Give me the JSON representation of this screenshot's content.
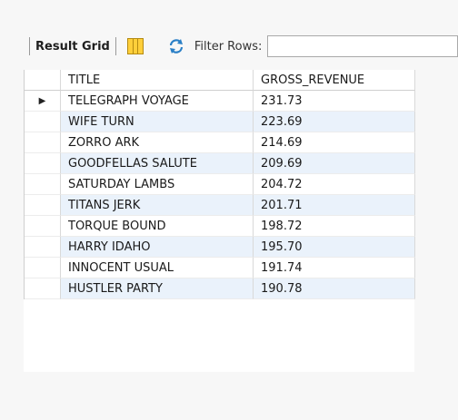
{
  "toolbar": {
    "result_grid_label": "Result Grid",
    "filter_label": "Filter Rows:",
    "filter_value": ""
  },
  "columns": [
    "TITLE",
    "GROSS_REVENUE"
  ],
  "rows": [
    {
      "title": "TELEGRAPH VOYAGE",
      "gross": "231.73"
    },
    {
      "title": "WIFE TURN",
      "gross": "223.69"
    },
    {
      "title": "ZORRO ARK",
      "gross": "214.69"
    },
    {
      "title": "GOODFELLAS SALUTE",
      "gross": "209.69"
    },
    {
      "title": "SATURDAY LAMBS",
      "gross": "204.72"
    },
    {
      "title": "TITANS JERK",
      "gross": "201.71"
    },
    {
      "title": "TORQUE BOUND",
      "gross": "198.72"
    },
    {
      "title": "HARRY IDAHO",
      "gross": "195.70"
    },
    {
      "title": "INNOCENT USUAL",
      "gross": "191.74"
    },
    {
      "title": "HUSTLER PARTY",
      "gross": "190.78"
    }
  ],
  "icons": {
    "grid": "grid-layout-icon",
    "refresh": "refresh-icon",
    "row_pointer": "row-pointer-icon"
  },
  "colors": {
    "alt_row": "#eaf2fb",
    "grid_icon": "#ffcf3a",
    "refresh_icon": "#2a7fc6"
  }
}
